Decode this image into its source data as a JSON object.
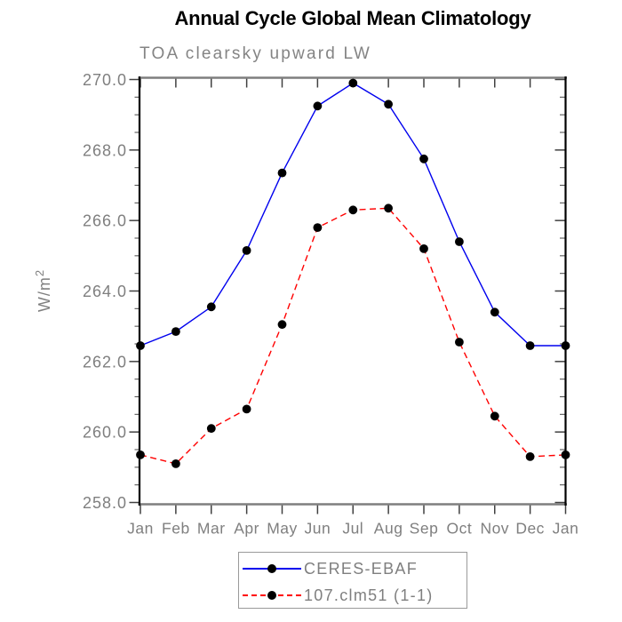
{
  "window": {
    "background": "#ffffff"
  },
  "chart_data": {
    "type": "line",
    "title": "Annual Cycle Global Mean Climatology",
    "subtitle": "TOA clearsky upward LW",
    "ylabel": "W/m²",
    "xlabel": "",
    "x_categories": [
      "Jan",
      "Feb",
      "Mar",
      "Apr",
      "May",
      "Jun",
      "Jul",
      "Aug",
      "Sep",
      "Oct",
      "Nov",
      "Dec",
      "Jan"
    ],
    "ylim": [
      258.0,
      270.0
    ],
    "ytick_major_interval": 2.0,
    "ytick_minor_interval": 0.5,
    "ytick_labels": [
      "258.0",
      "260.0",
      "262.0",
      "264.0",
      "266.0",
      "268.0",
      "270.0"
    ],
    "grid": false,
    "legend_position": "bottom-center",
    "marker": {
      "shape": "circle",
      "color": "#000000"
    },
    "series": [
      {
        "name": "CERES-EBAF",
        "color": "#0000ee",
        "line_style": "solid",
        "values": [
          262.45,
          262.85,
          263.55,
          265.15,
          267.35,
          269.25,
          269.9,
          269.3,
          267.75,
          265.4,
          263.4,
          262.45,
          262.45
        ]
      },
      {
        "name": "107.clm51 (1-1)",
        "color": "#ff0000",
        "line_style": "dashed",
        "values": [
          259.35,
          259.1,
          260.1,
          260.65,
          263.05,
          265.8,
          266.3,
          266.35,
          265.2,
          262.55,
          260.45,
          259.3,
          259.35
        ]
      }
    ],
    "axis_colors": {
      "horizontal": "#7f7f7f",
      "vertical": "#000000"
    },
    "label_color": "#7f7f7f"
  }
}
